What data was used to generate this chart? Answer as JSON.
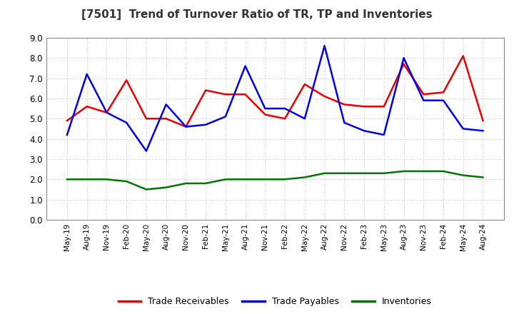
{
  "title": "[7501]  Trend of Turnover Ratio of TR, TP and Inventories",
  "labels": [
    "May-19",
    "Aug-19",
    "Nov-19",
    "Feb-20",
    "May-20",
    "Aug-20",
    "Nov-20",
    "Feb-21",
    "May-21",
    "Aug-21",
    "Nov-21",
    "Feb-22",
    "May-22",
    "Aug-22",
    "Nov-22",
    "Feb-23",
    "May-23",
    "Aug-23",
    "Nov-23",
    "Feb-24",
    "May-24",
    "Aug-24"
  ],
  "trade_receivables": [
    4.9,
    5.6,
    5.3,
    6.9,
    5.0,
    5.0,
    4.6,
    6.4,
    6.2,
    6.2,
    5.2,
    5.0,
    6.7,
    6.1,
    5.7,
    5.6,
    5.6,
    7.7,
    6.2,
    6.3,
    8.1,
    4.9
  ],
  "trade_payables": [
    4.2,
    7.2,
    5.3,
    4.8,
    3.4,
    5.7,
    4.6,
    4.7,
    5.1,
    7.6,
    5.5,
    5.5,
    5.0,
    8.6,
    4.8,
    4.4,
    4.2,
    8.0,
    5.9,
    5.9,
    4.5,
    4.4
  ],
  "inventories": [
    2.0,
    2.0,
    2.0,
    1.9,
    1.5,
    1.6,
    1.8,
    1.8,
    2.0,
    2.0,
    2.0,
    2.0,
    2.1,
    2.3,
    2.3,
    2.3,
    2.3,
    2.4,
    2.4,
    2.4,
    2.2,
    2.1
  ],
  "tr_color": "#ee0000",
  "tp_color": "#0000ee",
  "inv_color": "#007700",
  "ylim": [
    0.0,
    9.0
  ],
  "yticks": [
    0.0,
    1.0,
    2.0,
    3.0,
    4.0,
    5.0,
    6.0,
    7.0,
    8.0,
    9.0
  ],
  "legend_labels": [
    "Trade Receivables",
    "Trade Payables",
    "Inventories"
  ],
  "background_color": "#ffffff",
  "plot_bg_color": "#ffffff",
  "grid_color": "#bbbbbb",
  "title_color": "#333333",
  "title_fontsize": 11,
  "linewidth": 1.8
}
